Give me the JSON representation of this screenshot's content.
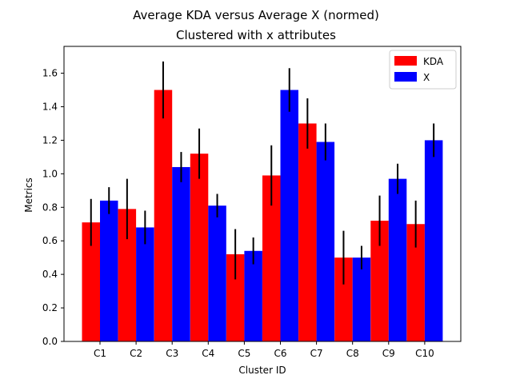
{
  "chart_data": {
    "type": "bar",
    "title": "Average KDA versus Average X (normed)",
    "subtitle": "Clustered with x attributes",
    "xlabel": "Cluster ID",
    "ylabel": "Metrics",
    "categories": [
      "C1",
      "C2",
      "C3",
      "C4",
      "C5",
      "C6",
      "C7",
      "C8",
      "C9",
      "C10"
    ],
    "ylim": [
      0,
      1.76
    ],
    "yticks": [
      0.0,
      0.2,
      0.4,
      0.6,
      0.8,
      1.0,
      1.2,
      1.4,
      1.6
    ],
    "ytick_labels": [
      "0.0",
      "0.2",
      "0.4",
      "0.6",
      "0.8",
      "1.0",
      "1.2",
      "1.4",
      "1.6"
    ],
    "grid": false,
    "legend_position": "top-right",
    "series": [
      {
        "name": "KDA",
        "color": "#ff0000",
        "values": [
          0.71,
          0.79,
          1.5,
          1.12,
          0.52,
          0.99,
          1.3,
          0.5,
          0.72,
          0.7
        ],
        "errors": [
          0.14,
          0.18,
          0.17,
          0.15,
          0.15,
          0.18,
          0.15,
          0.16,
          0.15,
          0.14
        ]
      },
      {
        "name": "X",
        "color": "#0000ff",
        "values": [
          0.84,
          0.68,
          1.04,
          0.81,
          0.54,
          1.5,
          1.19,
          0.5,
          0.97,
          1.2
        ],
        "errors": [
          0.08,
          0.1,
          0.09,
          0.07,
          0.08,
          0.13,
          0.11,
          0.07,
          0.09,
          0.1
        ]
      }
    ],
    "error_bar_color": "#000000"
  }
}
